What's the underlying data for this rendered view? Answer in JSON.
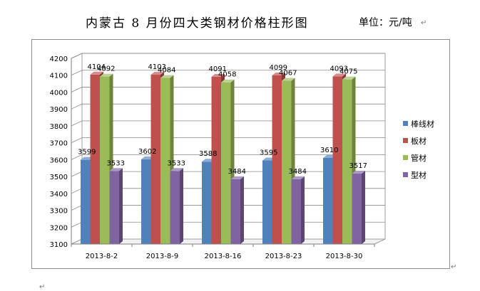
{
  "document": {
    "title": "内蒙古 8 月份四大类钢材价格柱形图",
    "unit": "单位：元/吨",
    "para_mark": "↵"
  },
  "chart_data": {
    "type": "bar",
    "categories": [
      "2013-8-2",
      "2013-8-9",
      "2013-8-16",
      "2013-8-23",
      "2013-8-30"
    ],
    "series": [
      {
        "name": "棒线材",
        "values": [
          3599,
          3602,
          3588,
          3595,
          3610
        ],
        "color": "#4f81bd"
      },
      {
        "name": "板材",
        "values": [
          4104,
          4103,
          4091,
          4099,
          4093
        ],
        "color": "#c0504d"
      },
      {
        "name": "管材",
        "values": [
          4092,
          4084,
          4058,
          4067,
          4075
        ],
        "color": "#9bbb59"
      },
      {
        "name": "型材",
        "values": [
          3533,
          3533,
          3484,
          3484,
          3517
        ],
        "color": "#8064a2"
      }
    ],
    "ylim": [
      3100,
      4200
    ],
    "y_ticks": [
      3100,
      3200,
      3300,
      3400,
      3500,
      3600,
      3700,
      3800,
      3900,
      4000,
      4100,
      4200
    ],
    "grid": true,
    "legend_position": "right",
    "style": "3d-clustered-column"
  }
}
